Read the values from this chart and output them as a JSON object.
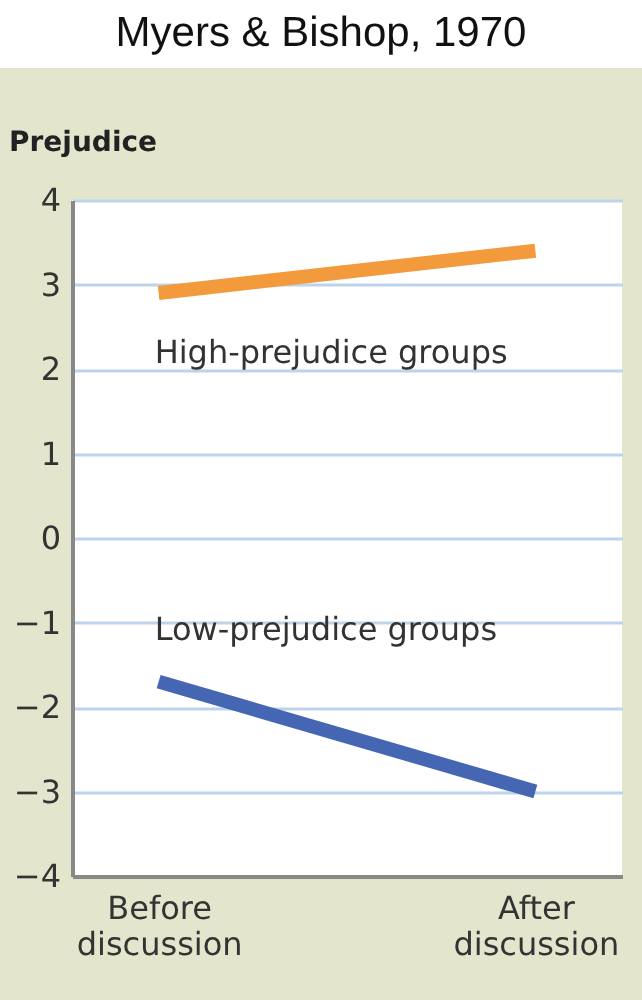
{
  "chart_data": {
    "type": "line",
    "title": "Myers & Bishop, 1970",
    "ylabel": "Prejudice",
    "categories": [
      "Before discussion",
      "After discussion"
    ],
    "series": [
      {
        "name": "High-prejudice groups",
        "color": "#f29a3c",
        "values": [
          2.9,
          3.4
        ]
      },
      {
        "name": "Low-prejudice groups",
        "color": "#4567b3",
        "values": [
          -1.7,
          -3.0
        ]
      }
    ],
    "ylim": [
      -4,
      4
    ],
    "yticks": [
      {
        "value": -4,
        "label": "−4"
      },
      {
        "value": -3,
        "label": "−3"
      },
      {
        "value": -2,
        "label": "−2"
      },
      {
        "value": -1,
        "label": "−1"
      },
      0,
      1,
      2,
      3,
      4
    ],
    "grid": "y",
    "legend": false,
    "marker": "none",
    "line_style": "solid"
  }
}
